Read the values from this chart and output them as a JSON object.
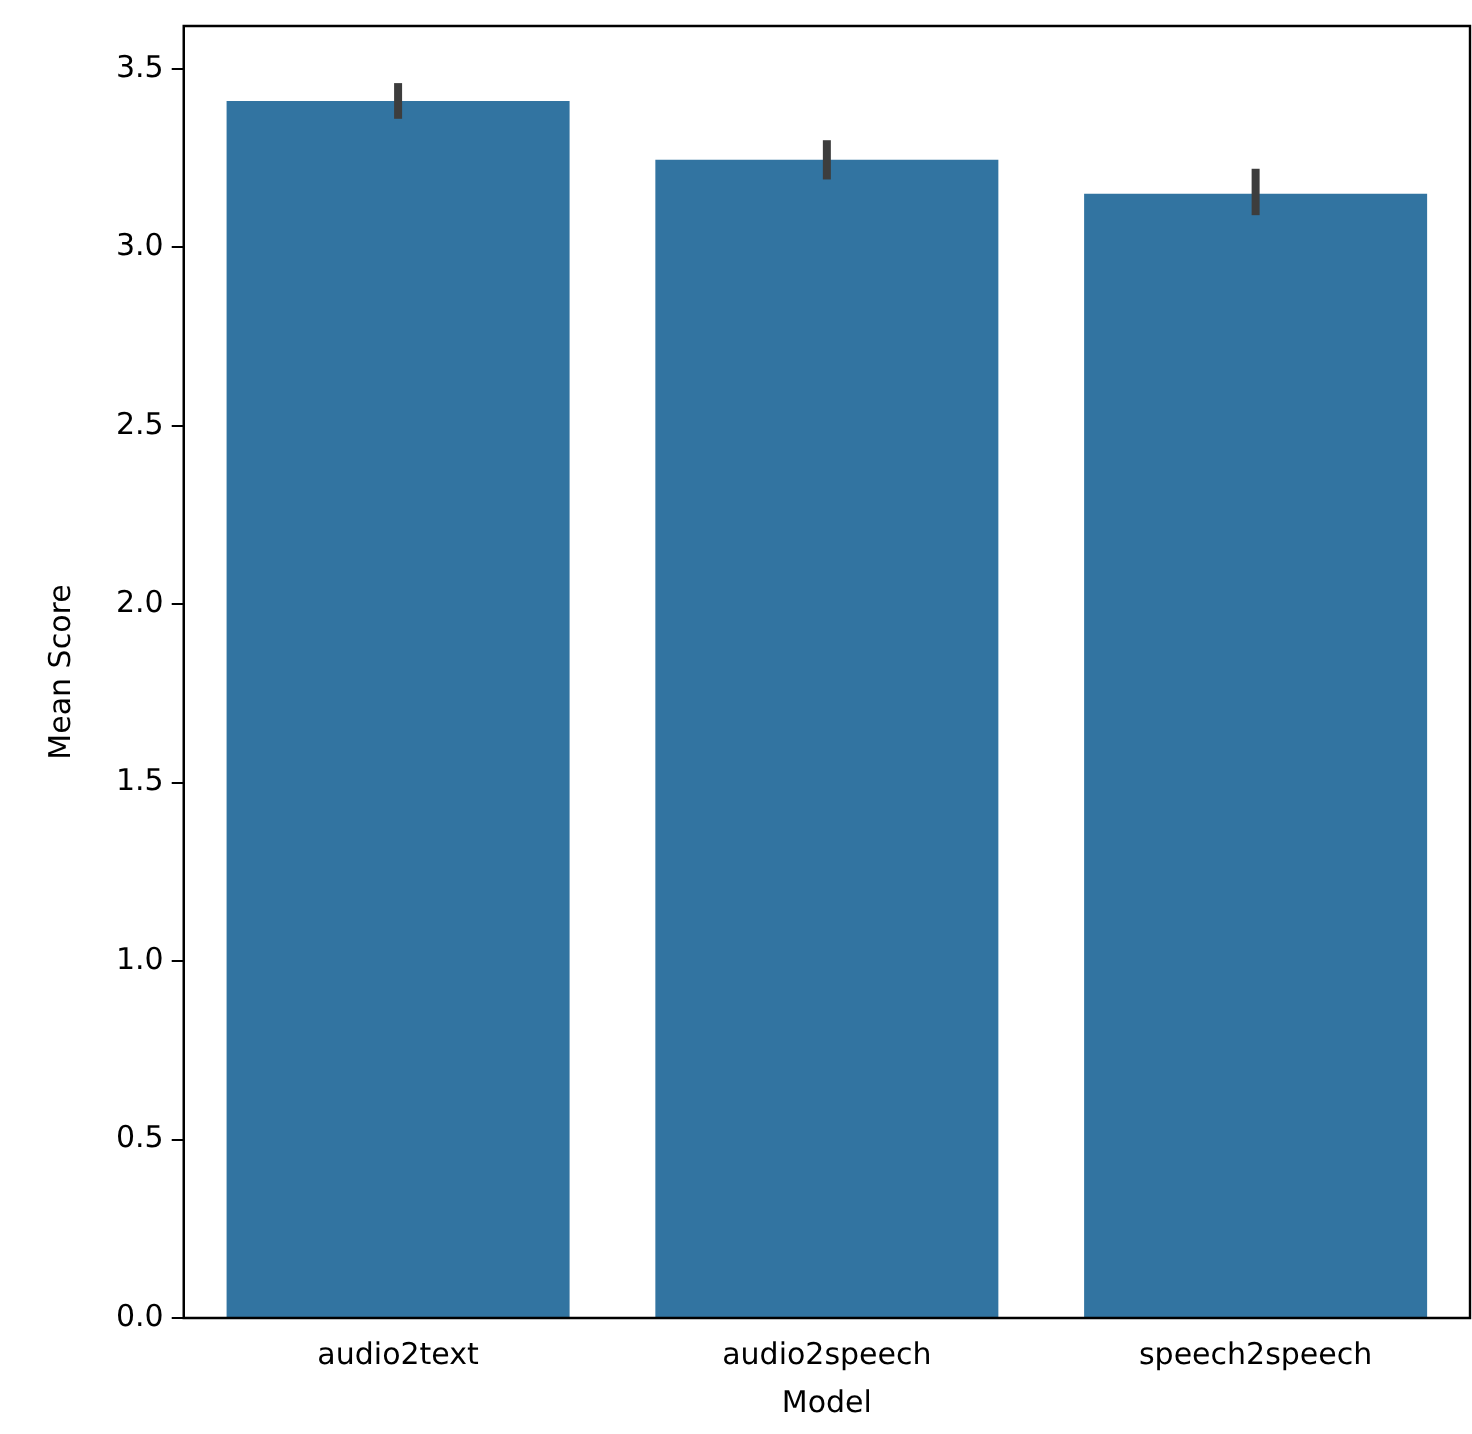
{
  "chart_data": {
    "type": "bar",
    "xlabel": "Model",
    "ylabel": "Mean Score",
    "categories": [
      "audio2text",
      "audio2speech",
      "speech2speech"
    ],
    "values": [
      3.41,
      3.245,
      3.15
    ],
    "errors": [
      [
        3.36,
        3.46
      ],
      [
        3.19,
        3.3
      ],
      [
        3.09,
        3.22
      ]
    ],
    "color": "#3274a1",
    "ylim": [
      0,
      3.62
    ],
    "yticks": [
      {
        "value": 0,
        "label": "0.0"
      },
      0.5,
      {
        "value": 1,
        "label": "1.0"
      },
      1.5,
      {
        "value": 2,
        "label": "2.0"
      },
      2.5,
      {
        "value": 3,
        "label": "3.0"
      },
      3.5
    ],
    "grid": false,
    "legend": false
  }
}
